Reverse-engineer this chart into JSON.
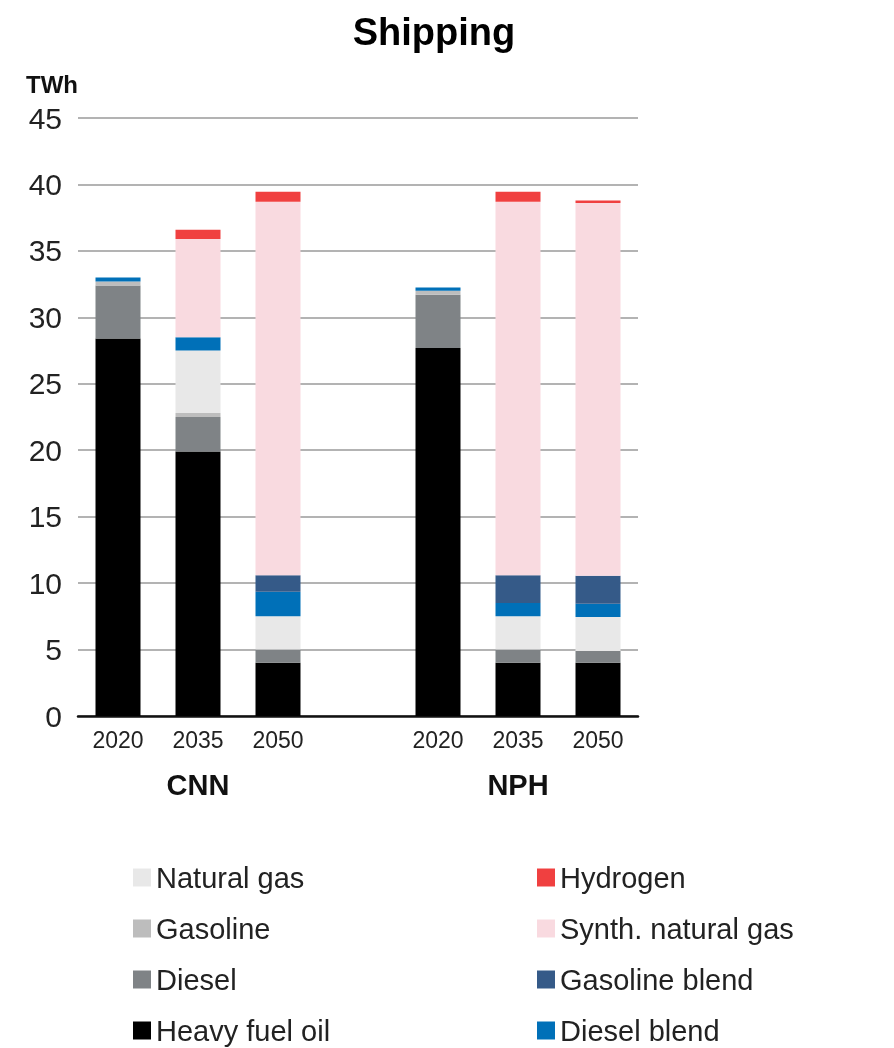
{
  "chart_data": {
    "type": "bar",
    "title": "Shipping",
    "ylabel": "TWh",
    "stacked": true,
    "categories": [
      "2020",
      "2035",
      "2050",
      null,
      "2020",
      "2035",
      "2050"
    ],
    "series": [
      {
        "name": "Heavy fuel oil",
        "color": "#000000",
        "values": [
          28.4,
          19.9,
          4.0,
          null,
          27.7,
          4.0,
          4.0
        ]
      },
      {
        "name": "Diesel",
        "color": "#7f8386",
        "values": [
          4.0,
          2.6,
          1.0,
          null,
          4.0,
          1.0,
          0.9
        ]
      },
      {
        "name": "Gasoline",
        "color": "#bdbdbd",
        "values": [
          0.3,
          0.3,
          0,
          null,
          0.3,
          0,
          0
        ]
      },
      {
        "name": "Natural gas",
        "color": "#e8e8e8",
        "values": [
          0,
          4.7,
          2.5,
          null,
          0,
          2.5,
          2.55
        ]
      },
      {
        "name": "Diesel blend",
        "color": "#0070b8",
        "values": [
          0.3,
          1.0,
          1.85,
          null,
          0.25,
          1.0,
          1.0
        ]
      },
      {
        "name": "Gasoline blend",
        "color": "#355a88",
        "values": [
          0,
          0,
          1.25,
          null,
          0,
          2.1,
          2.1
        ]
      },
      {
        "name": "Synth. natural gas",
        "color": "#f9dae0",
        "values": [
          0,
          7.4,
          28.1,
          null,
          0,
          28.1,
          28.05
        ]
      },
      {
        "name": "Hydrogen",
        "color": "#f04040",
        "values": [
          0,
          0.7,
          0.75,
          null,
          0,
          0.75,
          0.2
        ]
      }
    ],
    "ylim": [
      0,
      45
    ],
    "yticks": [
      0,
      5,
      10,
      15,
      20,
      25,
      30,
      35,
      40,
      45
    ],
    "grid": "y",
    "legend": "bottom",
    "annotations": [
      "CNN",
      "NPH"
    ]
  }
}
